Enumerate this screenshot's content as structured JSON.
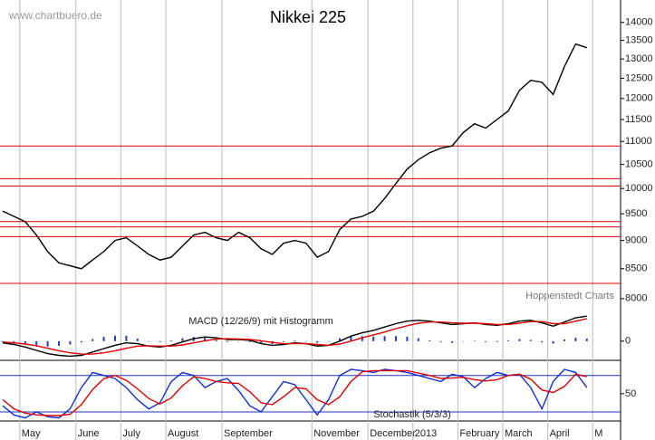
{
  "watermark": "www.chartbuero.de",
  "chart_data": [
    {
      "type": "line",
      "title": "Nikkei 225",
      "annotation": "Hoppenstedt Charts",
      "log_scale": true,
      "categories": [
        null,
        null,
        "May",
        null,
        null,
        null,
        null,
        "June",
        null,
        null,
        null,
        "July",
        null,
        null,
        null,
        "August",
        null,
        null,
        null,
        null,
        "September",
        null,
        null,
        null,
        null,
        null,
        null,
        null,
        "November",
        null,
        null,
        null,
        null,
        "December",
        null,
        null,
        null,
        "2013",
        null,
        null,
        null,
        "February",
        null,
        null,
        null,
        "March",
        null,
        null,
        null,
        "April",
        null,
        null,
        null,
        "M"
      ],
      "series": [
        {
          "color": "#000000",
          "values": [
            9550,
            9450,
            9350,
            9100,
            8800,
            8600,
            8550,
            8500,
            8650,
            8800,
            9000,
            9050,
            8900,
            8750,
            8650,
            8700,
            8900,
            9100,
            9150,
            9050,
            9000,
            9150,
            9050,
            8850,
            8750,
            8950,
            9000,
            8950,
            8700,
            8800,
            9200,
            9400,
            9450,
            9550,
            9800,
            10100,
            10400,
            10600,
            10750,
            10850,
            10900,
            11200,
            11400,
            11300,
            11500,
            11700,
            12200,
            12450,
            12400,
            12100,
            12800,
            13400,
            13300,
            null
          ]
        }
      ],
      "levels": [
        10900,
        10200,
        10050,
        9350,
        9250,
        9070,
        8250
      ],
      "level_color": "#e00000",
      "ylim": [
        7500,
        14650
      ],
      "yticks": [
        8000,
        8500,
        9000,
        9500,
        10000,
        10500,
        11000,
        11500,
        12000,
        12500,
        13000,
        13500,
        14000
      ]
    },
    {
      "type": "line",
      "title": "MACD (12/26/9) mit Histogramm",
      "series": [
        {
          "color": "#000000",
          "values": [
            -20,
            -40,
            -70,
            -110,
            -150,
            -170,
            -180,
            -170,
            -130,
            -90,
            -50,
            -20,
            -30,
            -60,
            -70,
            -50,
            -10,
            30,
            50,
            40,
            20,
            20,
            10,
            -30,
            -50,
            -40,
            -20,
            -30,
            -60,
            -50,
            0,
            60,
            100,
            130,
            170,
            210,
            240,
            250,
            240,
            220,
            200,
            210,
            220,
            200,
            190,
            210,
            240,
            250,
            220,
            180,
            230,
            280,
            300,
            null
          ]
        },
        {
          "color": "#e00000",
          "values": [
            -10,
            -20,
            -35,
            -55,
            -85,
            -115,
            -140,
            -155,
            -155,
            -140,
            -115,
            -85,
            -60,
            -55,
            -60,
            -58,
            -45,
            -20,
            5,
            25,
            30,
            25,
            20,
            5,
            -15,
            -30,
            -30,
            -30,
            -40,
            -50,
            -35,
            0,
            40,
            75,
            110,
            150,
            185,
            215,
            230,
            230,
            220,
            215,
            215,
            210,
            200,
            200,
            215,
            235,
            235,
            210,
            210,
            240,
            270,
            null
          ]
        }
      ],
      "histogram": {
        "color": "#2040c0",
        "values": [
          -10,
          -20,
          -35,
          -55,
          -65,
          -55,
          -40,
          -15,
          25,
          50,
          65,
          65,
          30,
          -5,
          -10,
          8,
          35,
          50,
          45,
          15,
          -10,
          -5,
          -10,
          -35,
          -35,
          -10,
          10,
          0,
          -20,
          0,
          35,
          60,
          60,
          55,
          60,
          60,
          55,
          35,
          10,
          -10,
          -20,
          -5,
          5,
          -10,
          -10,
          10,
          25,
          15,
          -15,
          -30,
          20,
          40,
          30,
          null
        ]
      },
      "ylim": [
        -230,
        400
      ],
      "yticks": [
        0
      ]
    },
    {
      "type": "line",
      "title": "Stochastik (5/3/3)",
      "series": [
        {
          "color": "#1030d0",
          "values": [
            30,
            15,
            10,
            20,
            12,
            10,
            25,
            60,
            85,
            80,
            75,
            60,
            40,
            25,
            35,
            70,
            85,
            80,
            60,
            70,
            75,
            55,
            30,
            20,
            45,
            70,
            65,
            40,
            15,
            40,
            80,
            90,
            88,
            85,
            90,
            88,
            85,
            80,
            75,
            70,
            82,
            78,
            60,
            75,
            85,
            80,
            82,
            60,
            25,
            70,
            90,
            85,
            60,
            null
          ]
        },
        {
          "color": "#e00000",
          "values": [
            40,
            25,
            18,
            15,
            14,
            14,
            16,
            32,
            57,
            75,
            80,
            72,
            58,
            42,
            33,
            43,
            63,
            78,
            75,
            70,
            68,
            67,
            53,
            35,
            32,
            45,
            60,
            58,
            40,
            32,
            45,
            70,
            86,
            88,
            88,
            88,
            88,
            84,
            80,
            75,
            76,
            77,
            73,
            71,
            73,
            80,
            82,
            74,
            56,
            52,
            62,
            82,
            78,
            null
          ]
        }
      ],
      "levels": [
        80,
        20
      ],
      "level_color": "#2030c0",
      "ylim": [
        5,
        102
      ],
      "yticks": [
        50
      ]
    }
  ]
}
